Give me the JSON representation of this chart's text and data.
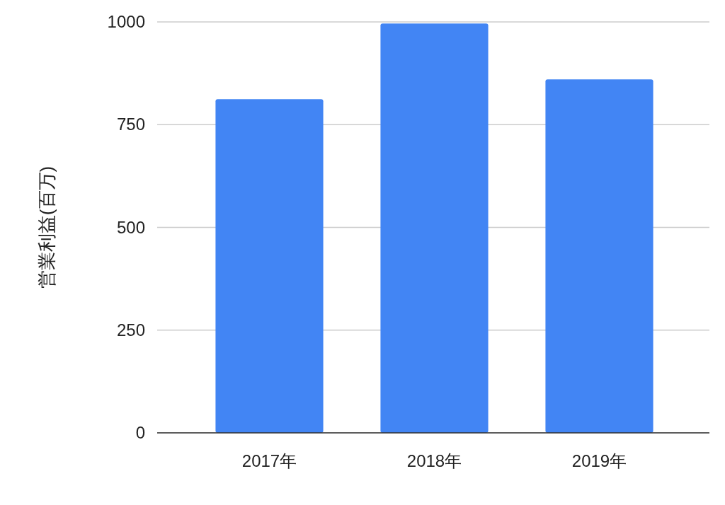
{
  "chart_data": {
    "type": "bar",
    "ylabel": "営業利益(百万)",
    "categories": [
      "2017年",
      "2018年",
      "2019年"
    ],
    "values": [
      812,
      996,
      860
    ],
    "color": "#4285f4",
    "ylim": [
      0,
      1000
    ],
    "yticks": [
      0,
      250,
      500,
      750,
      1000
    ],
    "grid": "y"
  }
}
